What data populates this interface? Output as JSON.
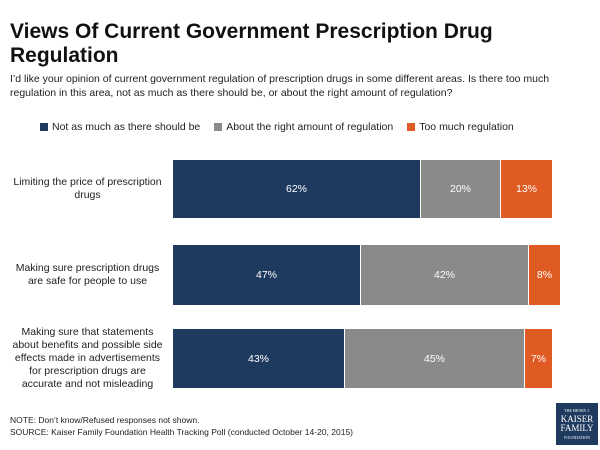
{
  "chart_data": {
    "type": "stacked-bar-horizontal",
    "title": "Views Of Current Government Prescription Drug Regulation",
    "subtitle": "I’d like your opinion of current government regulation of prescription drugs in some different areas.  Is there too much regulation in this area, not as much as there should be, or about the right amount of regulation?",
    "categories": [
      "Limiting the price of prescription drugs",
      "Making sure prescription drugs are safe for people to use",
      "Making sure that statements about benefits and possible side effects made in advertisements for prescription drugs are accurate and not misleading"
    ],
    "xlim": [
      0,
      100
    ],
    "series": [
      {
        "name": "Not as much as there should be",
        "color": "#1f3a5f",
        "values": [
          62,
          47,
          43
        ],
        "value_labels": [
          "62%",
          "47%",
          "43%"
        ]
      },
      {
        "name": "About the right amount of regulation",
        "color": "#8a8a8a",
        "values": [
          20,
          42,
          45
        ],
        "value_labels": [
          "20%",
          "42%",
          "45%"
        ]
      },
      {
        "name": "Too much regulation",
        "color": "#e05a24",
        "values": [
          13,
          8,
          7
        ],
        "value_labels": [
          "13%",
          "8%",
          "7%"
        ]
      }
    ],
    "notes": [
      "NOTE: Don’t know/Refused responses not shown.",
      "SOURCE: Kaiser Family Foundation Health Tracking Poll (conducted October 14-20, 2015)"
    ],
    "logo": [
      "THE HENRY J.",
      "KAISER",
      "FAMILY",
      "FOUNDATION"
    ]
  }
}
